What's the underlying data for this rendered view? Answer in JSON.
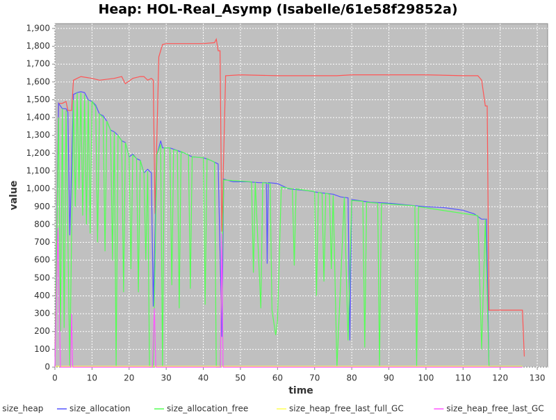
{
  "chart_data": {
    "type": "line",
    "title": "Heap: HOL-Real_Asymp (Isabelle/61e58f29852a)",
    "x_label": "time",
    "y_label": "value",
    "xlim": [
      0,
      132.8
    ],
    "ylim": [
      0,
      1927
    ],
    "xticks": [
      0,
      10,
      20,
      30,
      40,
      50,
      60,
      70,
      80,
      90,
      100,
      110,
      120,
      130
    ],
    "yticks": [
      0,
      100,
      200,
      300,
      400,
      500,
      600,
      700,
      800,
      900,
      {
        "value": 1000,
        "label": "1,000"
      },
      {
        "value": 1100,
        "label": "1,100"
      },
      {
        "value": 1200,
        "label": "1,200"
      },
      {
        "value": 1300,
        "label": "1,300"
      },
      {
        "value": 1400,
        "label": "1,400"
      },
      {
        "value": 1500,
        "label": "1,500"
      },
      {
        "value": 1600,
        "label": "1,600"
      },
      {
        "value": 1700,
        "label": "1,700"
      },
      {
        "value": 1800,
        "label": "1,800"
      },
      {
        "value": 1900,
        "label": "1,900"
      }
    ],
    "grid": true,
    "legend": "bottom",
    "series": [
      {
        "name": "size_heap",
        "color": "#ff5555",
        "x": [
          0,
          1,
          2,
          3,
          3.5,
          4.5,
          5,
          6,
          7,
          10,
          12,
          16,
          18,
          19,
          21,
          23,
          24,
          25,
          26,
          26.5,
          27,
          28,
          29,
          30,
          35,
          40,
          43,
          43.5,
          44,
          44.5,
          45,
          46,
          50,
          60,
          70,
          76,
          80,
          90,
          100,
          110,
          114,
          115,
          116,
          116.5,
          117,
          126,
          126.5
        ],
        "values": [
          60,
          1480,
          1480,
          1490,
          1440,
          1440,
          1610,
          1620,
          1630,
          1620,
          1610,
          1620,
          1630,
          1590,
          1620,
          1630,
          1630,
          1610,
          1620,
          1610,
          860,
          1740,
          1810,
          1815,
          1815,
          1815,
          1820,
          1840,
          1775,
          1775,
          760,
          1635,
          1640,
          1635,
          1635,
          1635,
          1640,
          1640,
          1640,
          1635,
          1635,
          1610,
          1465,
          1465,
          320,
          320,
          60
        ]
      },
      {
        "name": "size_allocation",
        "color": "#5555ff",
        "x": [
          0,
          1,
          2,
          3,
          3.5,
          4,
          5,
          6,
          7,
          8,
          9,
          10,
          11,
          12,
          13,
          14,
          15,
          16,
          17,
          18,
          19,
          20,
          21,
          22,
          23,
          24,
          25,
          26,
          26.5,
          27.5,
          28.5,
          29,
          31,
          33,
          35,
          37,
          40,
          42,
          44,
          45,
          45.5,
          48,
          52,
          55,
          57,
          57.2,
          57.5,
          60,
          63,
          68,
          71,
          75,
          77,
          79,
          79.5,
          80,
          85,
          90,
          100,
          105,
          110,
          113,
          115,
          116.3,
          117,
          126
        ],
        "values": [
          0,
          1480,
          1450,
          1450,
          1430,
          740,
          1530,
          1540,
          1545,
          1540,
          1500,
          1490,
          1470,
          1420,
          1410,
          1380,
          1330,
          1320,
          1300,
          1270,
          1260,
          1180,
          1195,
          1170,
          1160,
          1090,
          1110,
          1090,
          340,
          1190,
          1270,
          1230,
          1230,
          1215,
          1200,
          1180,
          1175,
          1160,
          1140,
          170,
          1055,
          1040,
          1040,
          1035,
          1035,
          580,
          1035,
          1030,
          1000,
          990,
          980,
          970,
          955,
          950,
          150,
          940,
          925,
          920,
          900,
          895,
          880,
          860,
          830,
          830,
          5,
          5
        ]
      },
      {
        "name": "size_allocation_free",
        "color": "#55ff55",
        "x": [
          0,
          1,
          1.5,
          2,
          2.5,
          3,
          4,
          5,
          5.5,
          6,
          6.5,
          7,
          7.5,
          8,
          8.5,
          9,
          9.5,
          10,
          11,
          11.5,
          12,
          13,
          13.5,
          14,
          15,
          15.5,
          16,
          16.5,
          17,
          18,
          18.5,
          19,
          20,
          20.5,
          21,
          22,
          22.5,
          23,
          24,
          24.5,
          25,
          25.5,
          26.5,
          27.5,
          28.5,
          29,
          29.5,
          31,
          31.5,
          32,
          33,
          33.5,
          34,
          36,
          36.5,
          37,
          40,
          40.5,
          41,
          43,
          43.5,
          44.5,
          45.5,
          53,
          53.5,
          54,
          55.5,
          56,
          58,
          58.5,
          59.5,
          60,
          61,
          64,
          64.5,
          65,
          70,
          70.5,
          71,
          72,
          72.5,
          73,
          74,
          74.5,
          75,
          76,
          78,
          79,
          80,
          83,
          83.5,
          84,
          87,
          87.5,
          88,
          97,
          97.5,
          98,
          114,
          115,
          116,
          117,
          126
        ],
        "values": [
          0,
          1400,
          200,
          1450,
          220,
          1440,
          0,
          1500,
          900,
          1540,
          1000,
          1540,
          850,
          1530,
          800,
          1500,
          750,
          1490,
          1460,
          700,
          1420,
          1400,
          650,
          1380,
          1330,
          600,
          1320,
          0,
          1300,
          1270,
          420,
          1260,
          1180,
          550,
          1190,
          1170,
          420,
          1160,
          1090,
          600,
          1100,
          0,
          0,
          1190,
          1250,
          0,
          1230,
          1230,
          460,
          1220,
          1215,
          330,
          1210,
          1190,
          440,
          1180,
          1175,
          350,
          1170,
          1150,
          0,
          0,
          1050,
          1040,
          530,
          1040,
          330,
          1035,
          1030,
          320,
          180,
          260,
          1010,
          1000,
          570,
          1000,
          985,
          400,
          980,
          975,
          480,
          975,
          970,
          550,
          965,
          0,
          955,
          150,
          935,
          930,
          110,
          925,
          920,
          0,
          918,
          905,
          0,
          900,
          850,
          100,
          830,
          5,
          5
        ]
      },
      {
        "name": "size_heap_free_last_full_GC",
        "color": "#ffff55",
        "x": [
          0,
          126
        ],
        "values": [
          5,
          5
        ]
      },
      {
        "name": "size_heap_free_last_GC",
        "color": "#ff55ff",
        "x": [
          0,
          0.8,
          1.5,
          4.2,
          4.5,
          4.8,
          26.3,
          26.8,
          27.2,
          44.6,
          45,
          45.3,
          126
        ],
        "values": [
          0,
          780,
          0,
          0,
          300,
          0,
          0,
          330,
          0,
          0,
          750,
          0,
          0
        ]
      }
    ]
  }
}
